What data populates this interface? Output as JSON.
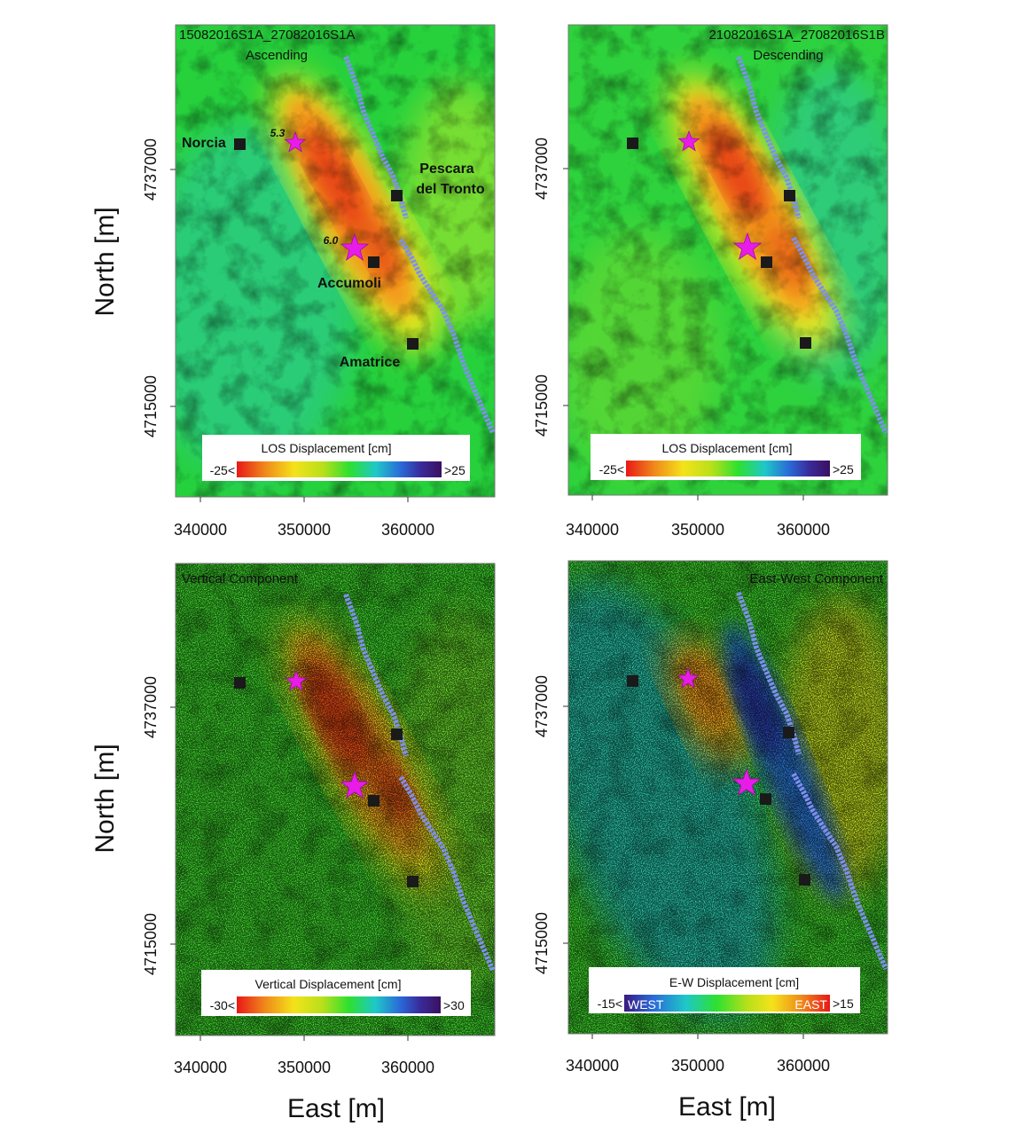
{
  "colors": {
    "background": "#1fd13a",
    "fault_trace": "#7f8ff0",
    "town_marker": "#1a1a1a",
    "epicenter_star": "#e81ce8",
    "legend_box": "#ffffff"
  },
  "panels": [
    {
      "id": "ascending",
      "title": "15082016S1A_27082016S1A",
      "subtitle": "Ascending",
      "legend": {
        "label": "LOS Displacement [cm]",
        "min_label": "-25<",
        "max_label": ">25",
        "gradient": [
          "#e81818",
          "#f08a1a",
          "#f4e21a",
          "#b8e01a",
          "#2ee030",
          "#1ec8c8",
          "#2a6ad8",
          "#3a2a9a",
          "#3a1060"
        ]
      },
      "y_ticks": [
        "4737000",
        "4715000"
      ],
      "x_ticks": [
        "340000",
        "350000",
        "360000"
      ],
      "towns": [
        {
          "name": "Norcia",
          "label": "Norcia"
        },
        {
          "name": "Pescara del Tronto",
          "label_line1": "Pescara",
          "label_line2": "del Tronto"
        },
        {
          "name": "Accumoli",
          "label": "Accumoli"
        },
        {
          "name": "Amatrice",
          "label": "Amatrice"
        }
      ],
      "quakes": [
        {
          "magnitude": "5.3",
          "size": "small"
        },
        {
          "magnitude": "6.0",
          "size": "large"
        }
      ]
    },
    {
      "id": "descending",
      "title": "21082016S1A_27082016S1B",
      "subtitle": "Descending",
      "legend": {
        "label": "LOS Displacement [cm]",
        "min_label": "-25<",
        "max_label": ">25",
        "gradient": [
          "#e81818",
          "#f08a1a",
          "#f4e21a",
          "#b8e01a",
          "#2ee030",
          "#1ec8c8",
          "#2a6ad8",
          "#3a2a9a",
          "#3a1060"
        ]
      },
      "y_ticks": [
        "4737000",
        "4715000"
      ],
      "x_ticks": [
        "340000",
        "350000",
        "360000"
      ]
    },
    {
      "id": "vertical",
      "title": "Vertical Component",
      "legend": {
        "label": "Vertical Displacement [cm]",
        "min_label": "-30<",
        "max_label": ">30",
        "gradient": [
          "#e81818",
          "#f08a1a",
          "#f4e21a",
          "#b8e01a",
          "#2ee030",
          "#1ec8c8",
          "#2a6ad8",
          "#3a2a9a",
          "#3a1060"
        ]
      },
      "y_ticks": [
        "4737000",
        "4715000"
      ],
      "x_ticks": [
        "340000",
        "350000",
        "360000"
      ]
    },
    {
      "id": "eastwest",
      "title": "East-West Component",
      "legend": {
        "label": "E-W Displacement [cm]",
        "min_label": "-15<",
        "max_label": ">15",
        "west_label": "WEST",
        "east_label": "EAST",
        "gradient": [
          "#3a1a80",
          "#2a6ad8",
          "#1ec8c8",
          "#2ee030",
          "#b8e01a",
          "#f4e21a",
          "#f08a1a",
          "#e81818"
        ]
      },
      "y_ticks": [
        "4737000",
        "4715000"
      ],
      "x_ticks": [
        "340000",
        "350000",
        "360000"
      ]
    }
  ],
  "axes": {
    "north_label": "North [m]",
    "east_label": "East [m]"
  }
}
